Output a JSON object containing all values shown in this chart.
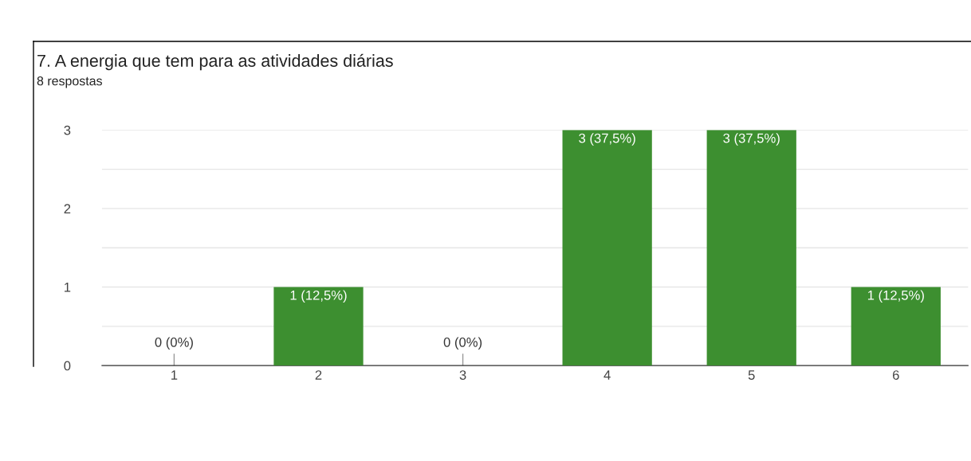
{
  "chart_data": {
    "type": "bar",
    "title": "7. A energia que tem para as atividades diárias",
    "subtitle": "8 respostas",
    "categories": [
      "1",
      "2",
      "3",
      "4",
      "5",
      "6"
    ],
    "values": [
      0,
      1,
      0,
      3,
      3,
      1
    ],
    "value_labels": [
      "0 (0%)",
      "1 (12,5%)",
      "0 (0%)",
      "3 (37,5%)",
      "3 (37,5%)",
      "1 (12,5%)"
    ],
    "color": "#3d8f30",
    "ylim": [
      0,
      3
    ],
    "yticks": [
      0,
      {
        "value": 0.5,
        "label": null
      },
      1,
      {
        "value": 1.5,
        "label": null
      },
      2,
      {
        "value": 2.5,
        "label": null
      },
      3
    ],
    "grid": "y",
    "legend": false
  }
}
